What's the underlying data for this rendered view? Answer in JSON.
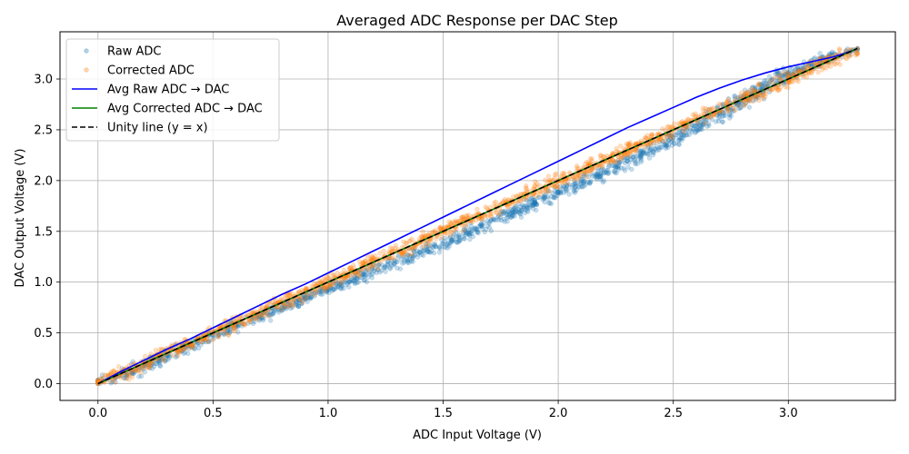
{
  "chart_data": {
    "type": "scatter",
    "title": "Averaged ADC Response per DAC Step",
    "xlabel": "ADC Input Voltage (V)",
    "ylabel": "DAC Output Voltage (V)",
    "xlim": [
      -0.165,
      3.465
    ],
    "ylim": [
      -0.165,
      3.465
    ],
    "x_ticks": [
      0.0,
      0.5,
      1.0,
      1.5,
      2.0,
      2.5,
      3.0
    ],
    "x_tick_labels": [
      "0.0",
      "0.5",
      "1.0",
      "1.5",
      "2.0",
      "2.5",
      "3.0"
    ],
    "y_ticks": [
      0.0,
      0.5,
      1.0,
      1.5,
      2.0,
      2.5,
      3.0
    ],
    "y_tick_labels": [
      "0.0",
      "0.5",
      "1.0",
      "1.5",
      "2.0",
      "2.5",
      "3.0"
    ],
    "grid": true,
    "legend_position": "top-left",
    "series": [
      {
        "name": "Raw ADC",
        "kind": "scatter",
        "color": "#1f77b4",
        "x": [
          0.0,
          0.1,
          0.2,
          0.3,
          0.4,
          0.5,
          0.6,
          0.7,
          0.8,
          0.9,
          1.0,
          1.1,
          1.2,
          1.3,
          1.4,
          1.5,
          1.6,
          1.7,
          1.8,
          1.9,
          2.0,
          2.1,
          2.2,
          2.3,
          2.4,
          2.5,
          2.6,
          2.7,
          2.8,
          2.9,
          3.0,
          3.1,
          3.2,
          3.3
        ],
        "y": [
          0.0,
          0.08,
          0.18,
          0.28,
          0.38,
          0.47,
          0.57,
          0.66,
          0.75,
          0.84,
          0.93,
          1.02,
          1.11,
          1.2,
          1.29,
          1.38,
          1.48,
          1.58,
          1.68,
          1.78,
          1.88,
          1.98,
          2.08,
          2.19,
          2.3,
          2.42,
          2.54,
          2.66,
          2.79,
          2.92,
          3.05,
          3.15,
          3.25,
          3.3
        ]
      },
      {
        "name": "Corrected ADC",
        "kind": "scatter",
        "color": "#ff7f0e",
        "x": [
          0.0,
          0.1,
          0.2,
          0.3,
          0.4,
          0.5,
          0.6,
          0.7,
          0.8,
          0.9,
          1.0,
          1.1,
          1.2,
          1.3,
          1.4,
          1.5,
          1.6,
          1.7,
          1.8,
          1.9,
          2.0,
          2.1,
          2.2,
          2.3,
          2.4,
          2.5,
          2.6,
          2.7,
          2.8,
          2.9,
          3.0,
          3.1,
          3.2,
          3.3
        ],
        "y": [
          0.0,
          0.1,
          0.2,
          0.3,
          0.4,
          0.5,
          0.6,
          0.7,
          0.8,
          0.9,
          1.0,
          1.1,
          1.2,
          1.3,
          1.4,
          1.5,
          1.6,
          1.7,
          1.8,
          1.9,
          2.0,
          2.1,
          2.2,
          2.3,
          2.4,
          2.5,
          2.6,
          2.7,
          2.8,
          2.9,
          3.0,
          3.1,
          3.2,
          3.3
        ]
      },
      {
        "name": "Avg Raw ADC → DAC",
        "kind": "line",
        "color": "#0000ff",
        "x": [
          0.0,
          0.1,
          0.2,
          0.3,
          0.4,
          0.5,
          0.6,
          0.7,
          0.8,
          0.9,
          1.0,
          1.1,
          1.2,
          1.3,
          1.4,
          1.5,
          1.6,
          1.7,
          1.8,
          1.9,
          2.0,
          2.1,
          2.2,
          2.3,
          2.4,
          2.5,
          2.6,
          2.7,
          2.8,
          2.9,
          3.0,
          3.1,
          3.2,
          3.28
        ],
        "y": [
          0.0,
          0.12,
          0.23,
          0.34,
          0.44,
          0.55,
          0.66,
          0.77,
          0.88,
          0.98,
          1.09,
          1.2,
          1.31,
          1.42,
          1.53,
          1.64,
          1.75,
          1.86,
          1.97,
          2.08,
          2.19,
          2.3,
          2.41,
          2.52,
          2.62,
          2.72,
          2.82,
          2.91,
          2.99,
          3.06,
          3.12,
          3.17,
          3.22,
          3.28
        ]
      },
      {
        "name": "Avg Corrected ADC → DAC",
        "kind": "line",
        "color": "#008000",
        "x": [
          0.0,
          3.3
        ],
        "y": [
          0.0,
          3.3
        ]
      },
      {
        "name": "Unity line (y = x)",
        "kind": "line",
        "style": "dashed",
        "color": "#000000",
        "x": [
          0.0,
          3.3
        ],
        "y": [
          0.0,
          3.3
        ]
      }
    ]
  }
}
